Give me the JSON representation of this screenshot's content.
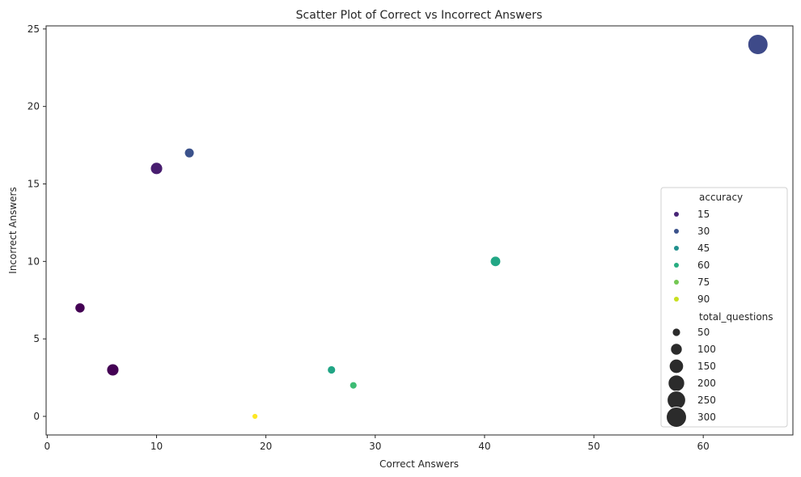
{
  "chart_data": {
    "type": "scatter",
    "title": "Scatter Plot of Correct vs Incorrect Answers",
    "xlabel": "Correct Answers",
    "ylabel": "Incorrect Answers",
    "xlim": [
      -0.1,
      68.2
    ],
    "ylim": [
      -1.2,
      25.2
    ],
    "xticks": [
      0,
      10,
      20,
      30,
      40,
      50,
      60
    ],
    "yticks": [
      0,
      5,
      10,
      15,
      20,
      25
    ],
    "grid": false,
    "legend_position": "lower-right",
    "points": [
      {
        "x": 65,
        "y": 24,
        "color": "#3e4a89",
        "size": 300
      },
      {
        "x": 13,
        "y": 17,
        "color": "#3b528b",
        "size": 70
      },
      {
        "x": 10,
        "y": 16,
        "color": "#481d6f",
        "size": 110
      },
      {
        "x": 41,
        "y": 10,
        "color": "#22a785",
        "size": 80
      },
      {
        "x": 3,
        "y": 7,
        "color": "#440154",
        "size": 75
      },
      {
        "x": 6,
        "y": 3,
        "color": "#440154",
        "size": 110
      },
      {
        "x": 26,
        "y": 3,
        "color": "#21a585",
        "size": 50
      },
      {
        "x": 28,
        "y": 2,
        "color": "#3dbc74",
        "size": 40
      },
      {
        "x": 19,
        "y": 0,
        "color": "#fde725",
        "size": 25
      }
    ],
    "legend": {
      "hue_title": "accuracy",
      "hue_entries": [
        {
          "label": "15",
          "color": "#482576"
        },
        {
          "label": "30",
          "color": "#3b528b"
        },
        {
          "label": "45",
          "color": "#21908d"
        },
        {
          "label": "60",
          "color": "#27ad81"
        },
        {
          "label": "75",
          "color": "#74c752"
        },
        {
          "label": "90",
          "color": "#c8e020"
        }
      ],
      "size_title": "total_questions",
      "size_color": "#2b2b2b",
      "size_entries": [
        {
          "label": "50",
          "size": 50
        },
        {
          "label": "100",
          "size": 100
        },
        {
          "label": "150",
          "size": 150
        },
        {
          "label": "200",
          "size": 200
        },
        {
          "label": "250",
          "size": 250
        },
        {
          "label": "300",
          "size": 300
        }
      ]
    }
  }
}
